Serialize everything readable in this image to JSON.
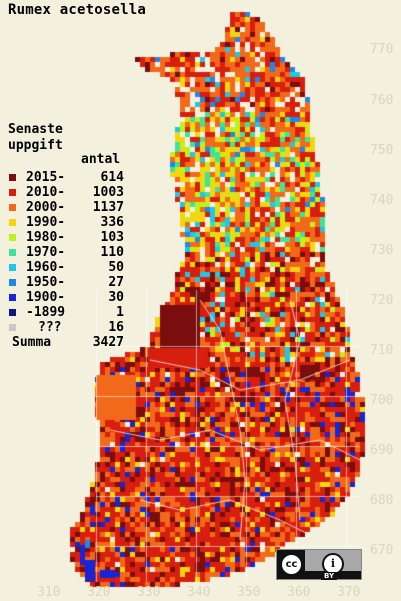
{
  "title": "Rumex acetosella",
  "legend": {
    "header_line1": "Senaste",
    "header_line2": "uppgift",
    "count_header": "antal",
    "rows": [
      {
        "label": "2015-",
        "count": "614",
        "color": "#7a0d0d"
      },
      {
        "label": "2010-",
        "count": "1003",
        "color": "#d81e0e"
      },
      {
        "label": "2000-",
        "count": "1137",
        "color": "#f26a19"
      },
      {
        "label": "1990-",
        "count": "336",
        "color": "#f2d60f"
      },
      {
        "label": "1980-",
        "count": "103",
        "color": "#bff21a"
      },
      {
        "label": "1970-",
        "count": "110",
        "color": "#3fe39a"
      },
      {
        "label": "1960-",
        "count": "50",
        "color": "#1ec8e6"
      },
      {
        "label": "1950-",
        "count": "27",
        "color": "#1f88e8"
      },
      {
        "label": "1900-",
        "count": "30",
        "color": "#1426d8"
      },
      {
        "label": "-1899",
        "count": "1",
        "color": "#0c1580"
      },
      {
        "label": "???",
        "count": "16",
        "color": "#c8c8c8"
      }
    ],
    "total_label": "Summa",
    "total_count": "3427"
  },
  "y_ticks": [
    "770",
    "760",
    "750",
    "740",
    "730",
    "720",
    "710",
    "700",
    "690",
    "680",
    "670"
  ],
  "x_ticks": [
    "310",
    "320",
    "330",
    "340",
    "350",
    "360",
    "370"
  ],
  "license_badge": {
    "left": "cc",
    "right": "i",
    "bottom": "BY"
  }
}
